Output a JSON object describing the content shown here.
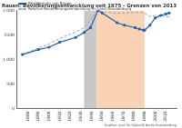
{
  "chart_data": {
    "type": "line",
    "title": "Rauen: Bevölkerungsentwicklung seit 1875 - Grenzen von 2013",
    "subtitle": "Quellen: Amt für Statistik Berlin-Brandenburg",
    "x": [
      1875,
      1890,
      1900,
      1910,
      1925,
      1933,
      1939,
      1946,
      1950,
      1964,
      1971,
      1981,
      1985,
      1989,
      1990,
      1995,
      2000,
      2005,
      2010,
      2013
    ],
    "series": [
      {
        "name": "Bevölkerung von Rauen",
        "color": "#1f5fa8",
        "marker": "circle",
        "line_style": "solid",
        "values": [
          1100,
          1200,
          1250,
          1350,
          1450,
          1550,
          1650,
          2000,
          1950,
          1750,
          1700,
          1650,
          1620,
          1600,
          1600,
          1700,
          1850,
          1900,
          1930,
          1950
        ]
      },
      {
        "name": "Relative Bevölkerungsentwicklung im Land Brandenburg",
        "color": "#8fa3bb",
        "marker": "none",
        "line_style": "dashed",
        "values": [
          1100,
          1230,
          1320,
          1430,
          1560,
          1650,
          1800,
          2000,
          1980,
          1940,
          1950,
          1960,
          1970,
          1950,
          1940,
          1880,
          1900,
          1890,
          1880,
          1870
        ]
      }
    ],
    "periods": [
      {
        "from": 1933,
        "to": 1945,
        "color": "#c8c8c8"
      },
      {
        "from": 1945,
        "to": 1990,
        "color": "#f9d3b4"
      }
    ],
    "xlim": [
      1870,
      2020
    ],
    "xticks": [
      1880,
      1890,
      1900,
      1910,
      1920,
      1930,
      1940,
      1950,
      1960,
      1970,
      1980,
      1990,
      2000,
      2010
    ],
    "ylim": [
      0,
      2000
    ],
    "yticks": [
      0,
      500,
      {
        "value": 1000,
        "label": "1,000"
      },
      1500,
      {
        "value": 2000,
        "label": "2,000"
      }
    ],
    "grid": false,
    "legend": "upper left"
  }
}
